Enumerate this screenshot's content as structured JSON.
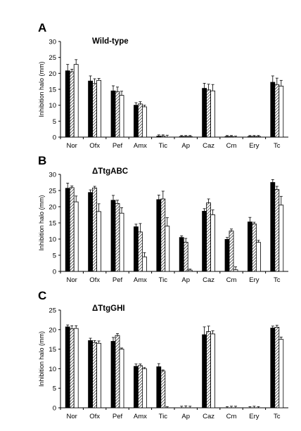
{
  "chart_data": [
    {
      "type": "bar",
      "panel": "A",
      "title": "Wild-type",
      "ylabel": "Inhibition halo (mm)",
      "ylim": [
        0,
        30
      ],
      "yticks": [
        0,
        5,
        10,
        15,
        20,
        25,
        30
      ],
      "categories": [
        "Nor",
        "Ofx",
        "Pef",
        "Amx",
        "Tic",
        "Ap",
        "Caz",
        "Cm",
        "Ery",
        "Tc"
      ],
      "series": [
        {
          "fill": "solid-black",
          "values": [
            20.8,
            17.6,
            14.5,
            10.0,
            0.3,
            0.2,
            15.3,
            0.2,
            0.2,
            17.2
          ],
          "errors": [
            2.0,
            1.6,
            1.6,
            0.8,
            0.4,
            0.3,
            1.6,
            0.3,
            0.3,
            2.0
          ]
        },
        {
          "fill": "hatched",
          "values": [
            20.5,
            16.8,
            14.3,
            10.4,
            0.3,
            0.2,
            14.8,
            0.2,
            0.2,
            16.5
          ],
          "errors": [
            0.8,
            1.5,
            1.4,
            0.7,
            0.4,
            0.3,
            1.8,
            0.3,
            0.3,
            2.0
          ]
        },
        {
          "fill": "white",
          "values": [
            22.8,
            17.8,
            13.1,
            9.5,
            0.0,
            0.2,
            14.5,
            0.0,
            0.2,
            16.0
          ],
          "errors": [
            1.5,
            0.6,
            1.3,
            0.5,
            0.6,
            0.3,
            2.0,
            0.3,
            0.3,
            1.8
          ]
        }
      ]
    },
    {
      "type": "bar",
      "panel": "B",
      "title": "ΔTtgABC",
      "ylabel": "Inhibition halo (mm)",
      "ylim": [
        0,
        30
      ],
      "yticks": [
        0,
        5,
        10,
        15,
        20,
        25,
        30
      ],
      "categories": [
        "Nor",
        "Ofx",
        "Pef",
        "Amx",
        "Tic",
        "Ap",
        "Caz",
        "Cm",
        "Ery",
        "Tc"
      ],
      "series": [
        {
          "fill": "solid-black",
          "values": [
            25.7,
            24.4,
            22.0,
            13.8,
            22.2,
            10.5,
            18.6,
            9.9,
            15.3,
            27.5
          ],
          "errors": [
            1.6,
            0.8,
            1.5,
            0.8,
            1.4,
            0.5,
            0.8,
            0.6,
            1.4,
            0.9
          ]
        },
        {
          "fill": "hatched",
          "values": [
            25.9,
            25.8,
            21.0,
            12.2,
            22.4,
            9.0,
            21.2,
            12.5,
            14.7,
            25.3
          ],
          "errors": [
            0.5,
            0.5,
            1.0,
            2.6,
            2.4,
            1.2,
            1.2,
            0.6,
            0.5,
            1.0
          ]
        },
        {
          "fill": "white",
          "values": [
            21.5,
            18.5,
            18.0,
            4.5,
            14.0,
            0.4,
            17.5,
            0.5,
            9.0,
            20.5
          ],
          "errors": [
            1.8,
            2.4,
            1.7,
            1.3,
            2.6,
            0.3,
            1.5,
            0.9,
            0.6,
            2.7
          ]
        }
      ]
    },
    {
      "type": "bar",
      "panel": "C",
      "title": "ΔTtgGHI",
      "ylabel": "Inhibition halo (mm)",
      "ylim": [
        0,
        25
      ],
      "yticks": [
        0,
        5,
        10,
        15,
        20,
        25
      ],
      "categories": [
        "Nor",
        "Ofx",
        "Pef",
        "Amx",
        "Tic",
        "Ap",
        "Caz",
        "Cm",
        "Ery",
        "Tc"
      ],
      "series": [
        {
          "fill": "solid-black",
          "values": [
            20.7,
            17.2,
            17.0,
            10.6,
            10.5,
            0.0,
            18.7,
            0.0,
            0.0,
            20.4
          ],
          "errors": [
            0.5,
            0.6,
            1.0,
            0.6,
            0.8,
            0.4,
            2.0,
            0.3,
            0.3,
            0.5
          ]
        },
        {
          "fill": "hatched",
          "values": [
            20.2,
            16.7,
            18.5,
            10.8,
            9.4,
            0.0,
            19.5,
            0.0,
            0.0,
            20.6
          ],
          "errors": [
            0.8,
            0.5,
            0.5,
            0.4,
            0.3,
            0.5,
            1.4,
            0.4,
            0.4,
            0.5
          ]
        },
        {
          "fill": "white",
          "values": [
            20.3,
            16.5,
            15.0,
            10.0,
            0.0,
            0.0,
            18.9,
            0.0,
            0.0,
            17.5
          ],
          "errors": [
            0.7,
            0.6,
            0.3,
            0.3,
            0.3,
            0.4,
            0.8,
            0.4,
            0.3,
            0.6
          ]
        }
      ]
    }
  ],
  "colors": {
    "solid": "#000000",
    "hatch": "#000000",
    "white": "#ffffff",
    "axis": "#000000"
  }
}
